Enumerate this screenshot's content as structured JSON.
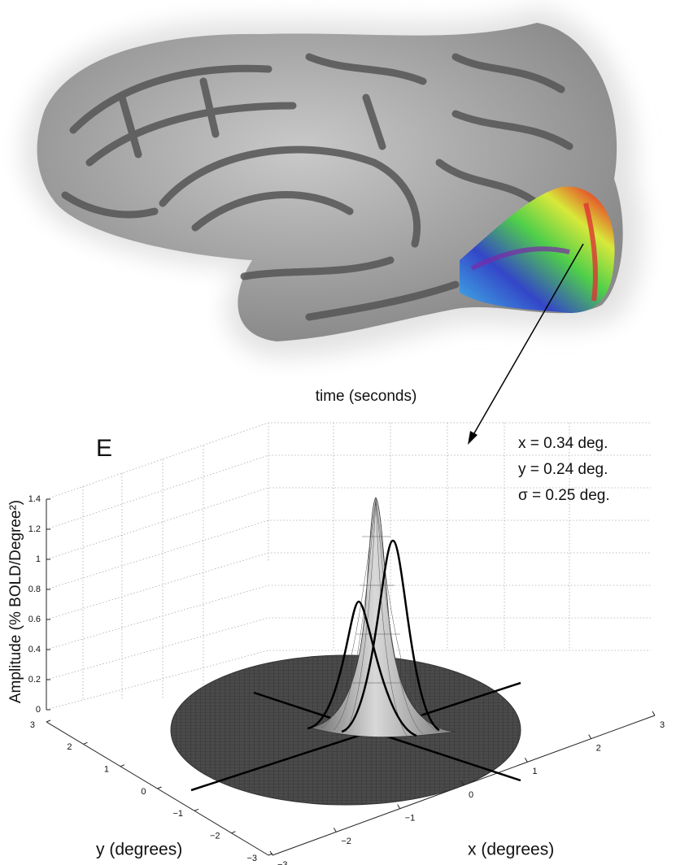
{
  "figure": {
    "top_label": "time (seconds)",
    "panel_label": "E",
    "parameters": [
      "x = 0.34 deg.",
      "y = 0.24 deg.",
      "σ = 0.25 deg."
    ],
    "z_axis_label": "Amplitude (% BOLD/Degree²)",
    "z_ticks": [
      "0",
      "0.2",
      "0.4",
      "0.6",
      "0.8",
      "1",
      "1.2",
      "1.4"
    ],
    "y_axis_label": "y (degrees)",
    "y_ticks": [
      "3",
      "2",
      "1",
      "0",
      "−1",
      "−2",
      "−3"
    ],
    "x_axis_label": "x (degrees)",
    "x_ticks": [
      "−3",
      "−2",
      "−1",
      "0",
      "1",
      "2",
      "3"
    ]
  }
}
